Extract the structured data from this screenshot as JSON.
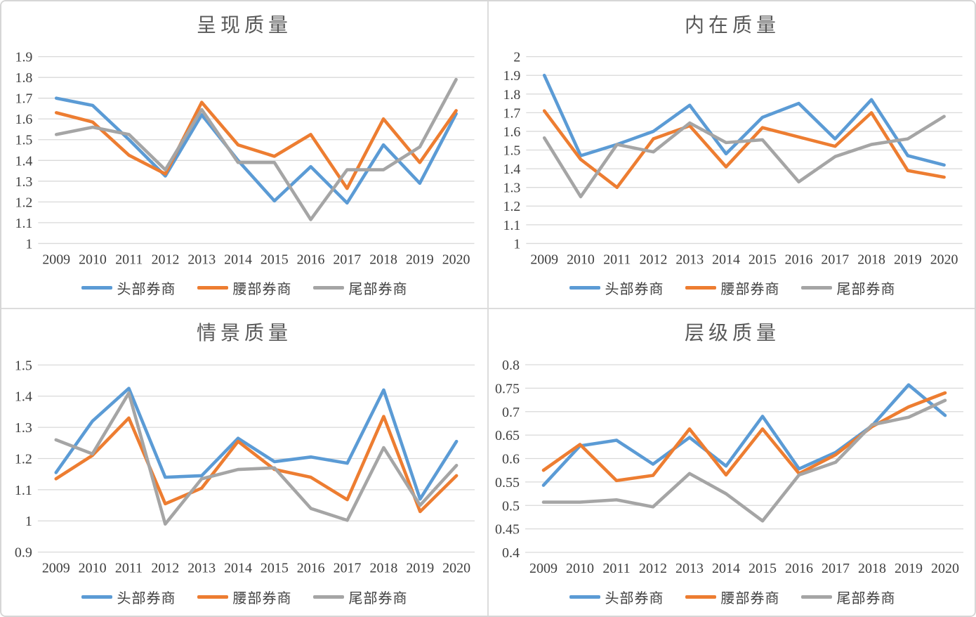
{
  "colors": {
    "blue": "#5B9BD5",
    "orange": "#ED7D31",
    "gray": "#A5A5A5",
    "gridline": "#D9D9D9",
    "axis_text": "#404040",
    "title_text": "#595959"
  },
  "legend": [
    "头部券商",
    "腰部券商",
    "尾部券商"
  ],
  "years": [
    "2009",
    "2010",
    "2011",
    "2012",
    "2013",
    "2014",
    "2015",
    "2016",
    "2017",
    "2018",
    "2019",
    "2020"
  ],
  "chart_data": [
    {
      "type": "line",
      "title": "呈现质量",
      "x": [
        "2009",
        "2010",
        "2011",
        "2012",
        "2013",
        "2014",
        "2015",
        "2016",
        "2017",
        "2018",
        "2019",
        "2020"
      ],
      "ylim": [
        1,
        1.9
      ],
      "ystep": 0.1,
      "yticks": [
        "1.9",
        "1.8",
        "1.7",
        "1.6",
        "1.5",
        "1.4",
        "1.3",
        "1.2",
        "1.1",
        "1"
      ],
      "grid": true,
      "legend_position": "bottom",
      "series": [
        {
          "name": "头部券商",
          "color_key": "blue",
          "values": [
            1.7,
            1.665,
            1.5,
            1.325,
            1.62,
            1.4,
            1.205,
            1.37,
            1.195,
            1.475,
            1.29,
            1.625
          ]
        },
        {
          "name": "腰部券商",
          "color_key": "orange",
          "values": [
            1.63,
            1.585,
            1.425,
            1.335,
            1.68,
            1.475,
            1.42,
            1.525,
            1.265,
            1.6,
            1.39,
            1.64
          ]
        },
        {
          "name": "尾部券商",
          "color_key": "gray",
          "values": [
            1.525,
            1.56,
            1.525,
            1.355,
            1.645,
            1.39,
            1.39,
            1.115,
            1.355,
            1.355,
            1.465,
            1.79
          ]
        }
      ]
    },
    {
      "type": "line",
      "title": "内在质量",
      "x": [
        "2009",
        "2010",
        "2011",
        "2012",
        "2013",
        "2014",
        "2015",
        "2016",
        "2017",
        "2018",
        "2019",
        "2020"
      ],
      "ylim": [
        1,
        2
      ],
      "ystep": 0.1,
      "yticks": [
        "2",
        "1.9",
        "1.8",
        "1.7",
        "1.6",
        "1.5",
        "1.4",
        "1.3",
        "1.2",
        "1.1",
        "1"
      ],
      "grid": true,
      "legend_position": "bottom",
      "series": [
        {
          "name": "头部券商",
          "color_key": "blue",
          "values": [
            1.9,
            1.47,
            1.53,
            1.6,
            1.74,
            1.48,
            1.675,
            1.75,
            1.56,
            1.77,
            1.47,
            1.42
          ]
        },
        {
          "name": "腰部券商",
          "color_key": "orange",
          "values": [
            1.71,
            1.45,
            1.3,
            1.56,
            1.63,
            1.41,
            1.62,
            1.57,
            1.52,
            1.7,
            1.39,
            1.355
          ]
        },
        {
          "name": "尾部券商",
          "color_key": "gray",
          "values": [
            1.565,
            1.25,
            1.53,
            1.49,
            1.645,
            1.54,
            1.555,
            1.33,
            1.465,
            1.53,
            1.56,
            1.68
          ]
        }
      ]
    },
    {
      "type": "line",
      "title": "情景质量",
      "x": [
        "2009",
        "2010",
        "2011",
        "2012",
        "2013",
        "2014",
        "2015",
        "2016",
        "2017",
        "2018",
        "2019",
        "2020"
      ],
      "ylim": [
        0.9,
        1.5
      ],
      "ystep": 0.1,
      "yticks": [
        "1.5",
        "1.4",
        "1.3",
        "1.2",
        "1.1",
        "1",
        "0.9"
      ],
      "grid": true,
      "legend_position": "bottom",
      "series": [
        {
          "name": "头部券商",
          "color_key": "blue",
          "values": [
            1.155,
            1.32,
            1.425,
            1.14,
            1.145,
            1.265,
            1.19,
            1.205,
            1.185,
            1.42,
            1.07,
            1.255
          ]
        },
        {
          "name": "腰部券商",
          "color_key": "orange",
          "values": [
            1.135,
            1.21,
            1.33,
            1.055,
            1.105,
            1.255,
            1.165,
            1.14,
            1.068,
            1.335,
            1.03,
            1.145
          ]
        },
        {
          "name": "尾部券商",
          "color_key": "gray",
          "values": [
            1.26,
            1.215,
            1.41,
            0.99,
            1.135,
            1.165,
            1.17,
            1.04,
            1.002,
            1.235,
            1.05,
            1.178
          ]
        }
      ]
    },
    {
      "type": "line",
      "title": "层级质量",
      "x": [
        "2009",
        "2010",
        "2011",
        "2012",
        "2013",
        "2014",
        "2015",
        "2016",
        "2017",
        "2018",
        "2019",
        "2020"
      ],
      "ylim": [
        0.4,
        0.8
      ],
      "ystep": 0.05,
      "yticks": [
        "0.8",
        "0.75",
        "0.7",
        "0.65",
        "0.6",
        "0.55",
        "0.5",
        "0.45",
        "0.4"
      ],
      "grid": true,
      "legend_position": "bottom",
      "series": [
        {
          "name": "头部券商",
          "color_key": "blue",
          "values": [
            0.543,
            0.627,
            0.639,
            0.588,
            0.645,
            0.584,
            0.69,
            0.578,
            0.613,
            0.67,
            0.757,
            0.692
          ]
        },
        {
          "name": "腰部券商",
          "color_key": "orange",
          "values": [
            0.575,
            0.63,
            0.553,
            0.564,
            0.663,
            0.565,
            0.663,
            0.568,
            0.608,
            0.668,
            0.71,
            0.74
          ]
        },
        {
          "name": "尾部券商",
          "color_key": "gray",
          "values": [
            0.507,
            0.507,
            0.512,
            0.497,
            0.568,
            0.525,
            0.467,
            0.565,
            0.592,
            0.672,
            0.688,
            0.724
          ]
        }
      ]
    }
  ]
}
